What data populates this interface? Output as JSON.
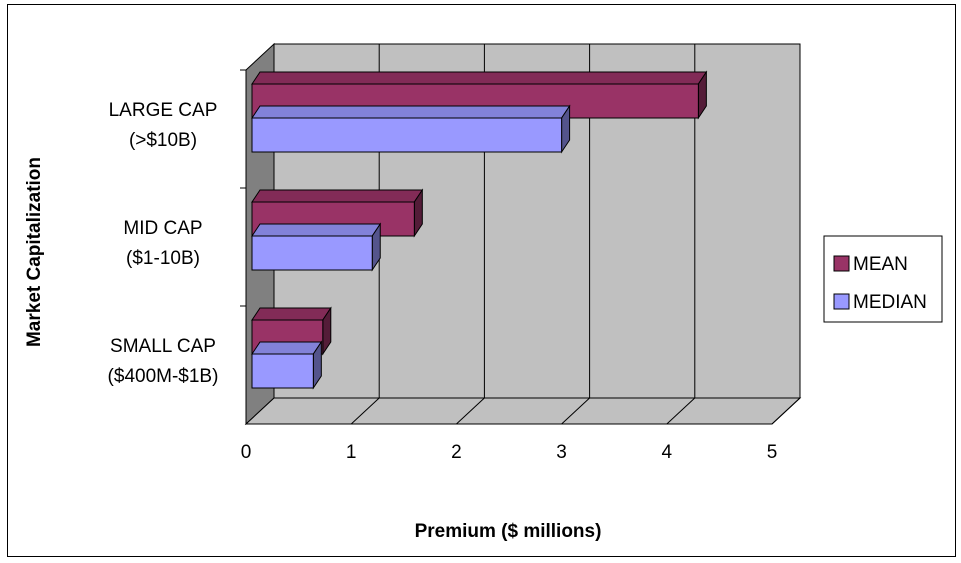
{
  "chart_data": {
    "type": "bar",
    "orientation": "horizontal",
    "three_d": true,
    "categories": [
      [
        "LARGE CAP",
        "(>$10B)"
      ],
      [
        "MID CAP",
        "($1-10B)"
      ],
      [
        "SMALL CAP",
        "($400M-$1B)"
      ]
    ],
    "series": [
      {
        "name": "MEAN",
        "color": "#993366",
        "values": [
          4.3,
          1.6,
          0.73
        ]
      },
      {
        "name": "MEDIAN",
        "color": "#9999FF",
        "values": [
          3.0,
          1.2,
          0.64
        ]
      }
    ],
    "xlabel": "Premium ($ millions)",
    "ylabel": "Market Capitalization",
    "xlim": [
      0,
      5
    ],
    "xticks": [
      "0",
      "1",
      "2",
      "3",
      "4",
      "5"
    ],
    "grid": true,
    "legend": "right"
  }
}
